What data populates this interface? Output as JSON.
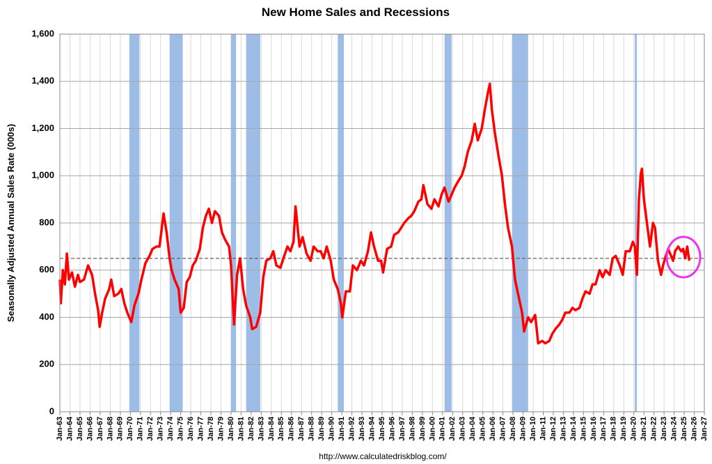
{
  "chart_data": {
    "type": "line",
    "title": "New Home Sales and Recessions",
    "y_label": "Seasonally Adjusted Annual Sales Rate (000s)",
    "source": "http://www.calculatedriskblog.com/",
    "color": "#ff0000",
    "recession_color": "#9dbde6",
    "reference_line": 650,
    "grid": true,
    "xlim": [
      1963,
      2027
    ],
    "ylim": [
      0,
      1600
    ],
    "yticks": [
      0,
      200,
      400,
      600,
      800,
      {
        "value": 1000,
        "label": "1,000"
      },
      {
        "value": 1200,
        "label": "1,200"
      },
      {
        "value": 1400,
        "label": "1,400"
      },
      {
        "value": 1600,
        "label": "1,600"
      }
    ],
    "xticks": [
      {
        "value": 1963,
        "label": "Jan-63"
      },
      {
        "value": 1964,
        "label": "Jan-64"
      },
      {
        "value": 1965,
        "label": "Jan-65"
      },
      {
        "value": 1966,
        "label": "Jan-66"
      },
      {
        "value": 1967,
        "label": "Jan-67"
      },
      {
        "value": 1968,
        "label": "Jan-68"
      },
      {
        "value": 1969,
        "label": "Jan-69"
      },
      {
        "value": 1970,
        "label": "Jan-70"
      },
      {
        "value": 1971,
        "label": "Jan-71"
      },
      {
        "value": 1972,
        "label": "Jan-72"
      },
      {
        "value": 1973,
        "label": "Jan-73"
      },
      {
        "value": 1974,
        "label": "Jan-74"
      },
      {
        "value": 1975,
        "label": "Jan-75"
      },
      {
        "value": 1976,
        "label": "Jan-76"
      },
      {
        "value": 1977,
        "label": "Jan-77"
      },
      {
        "value": 1978,
        "label": "Jan-78"
      },
      {
        "value": 1979,
        "label": "Jan-79"
      },
      {
        "value": 1980,
        "label": "Jan-80"
      },
      {
        "value": 1981,
        "label": "Jan-81"
      },
      {
        "value": 1982,
        "label": "Jan-82"
      },
      {
        "value": 1983,
        "label": "Jan-83"
      },
      {
        "value": 1984,
        "label": "Jan-84"
      },
      {
        "value": 1985,
        "label": "Jan-85"
      },
      {
        "value": 1986,
        "label": "Jan-86"
      },
      {
        "value": 1987,
        "label": "Jan-87"
      },
      {
        "value": 1988,
        "label": "Jan-88"
      },
      {
        "value": 1989,
        "label": "Jan-89"
      },
      {
        "value": 1990,
        "label": "Jan-90"
      },
      {
        "value": 1991,
        "label": "Jan-91"
      },
      {
        "value": 1992,
        "label": "Jan-92"
      },
      {
        "value": 1993,
        "label": "Jan-93"
      },
      {
        "value": 1994,
        "label": "Jan-94"
      },
      {
        "value": 1995,
        "label": "Jan-95"
      },
      {
        "value": 1996,
        "label": "Jan-96"
      },
      {
        "value": 1997,
        "label": "Jan-97"
      },
      {
        "value": 1998,
        "label": "Jan-98"
      },
      {
        "value": 1999,
        "label": "Jan-99"
      },
      {
        "value": 2000,
        "label": "Jan-00"
      },
      {
        "value": 2001,
        "label": "Jan-01"
      },
      {
        "value": 2002,
        "label": "Jan-02"
      },
      {
        "value": 2003,
        "label": "Jan-03"
      },
      {
        "value": 2004,
        "label": "Jan-04"
      },
      {
        "value": 2005,
        "label": "Jan-05"
      },
      {
        "value": 2006,
        "label": "Jan-06"
      },
      {
        "value": 2007,
        "label": "Jan-07"
      },
      {
        "value": 2008,
        "label": "Jan-08"
      },
      {
        "value": 2009,
        "label": "Jan-09"
      },
      {
        "value": 2010,
        "label": "Jan-10"
      },
      {
        "value": 2011,
        "label": "Jan-11"
      },
      {
        "value": 2012,
        "label": "Jan-12"
      },
      {
        "value": 2013,
        "label": "Jan-13"
      },
      {
        "value": 2014,
        "label": "Jan-14"
      },
      {
        "value": 2015,
        "label": "Jan-15"
      },
      {
        "value": 2016,
        "label": "Jan-16"
      },
      {
        "value": 2017,
        "label": "Jan-17"
      },
      {
        "value": 2018,
        "label": "Jan-18"
      },
      {
        "value": 2019,
        "label": "Jan-19"
      },
      {
        "value": 2020,
        "label": "Jan-20"
      },
      {
        "value": 2021,
        "label": "Jan-21"
      },
      {
        "value": 2022,
        "label": "Jan-22"
      },
      {
        "value": 2023,
        "label": "Jan-23"
      },
      {
        "value": 2024,
        "label": "Jan-24"
      },
      {
        "value": 2025,
        "label": "Jan-25"
      },
      {
        "value": 2026,
        "label": "Jan-26"
      },
      {
        "value": 2027,
        "label": "Jan-27"
      }
    ],
    "recessions": [
      [
        1969.9,
        1970.9
      ],
      [
        1973.9,
        1975.2
      ],
      [
        1980.0,
        1980.5
      ],
      [
        1981.5,
        1982.9
      ],
      [
        1990.6,
        1991.2
      ],
      [
        2001.2,
        2001.9
      ],
      [
        2007.9,
        2009.5
      ],
      [
        2020.1,
        2020.3
      ]
    ],
    "x": [
      1963.0,
      1963.1,
      1963.3,
      1963.5,
      1963.7,
      1963.9,
      1964.2,
      1964.5,
      1964.8,
      1965.0,
      1965.4,
      1965.8,
      1966.2,
      1966.5,
      1966.8,
      1966.95,
      1967.2,
      1967.5,
      1967.9,
      1968.1,
      1968.4,
      1968.8,
      1969.1,
      1969.4,
      1969.7,
      1969.9,
      1970.1,
      1970.4,
      1970.8,
      1971.1,
      1971.5,
      1971.9,
      1972.2,
      1972.6,
      1972.9,
      1973.1,
      1973.3,
      1973.6,
      1973.9,
      1974.1,
      1974.4,
      1974.8,
      1975.0,
      1975.3,
      1975.6,
      1975.9,
      1976.2,
      1976.5,
      1976.9,
      1977.2,
      1977.5,
      1977.8,
      1978.1,
      1978.4,
      1978.8,
      1979.1,
      1979.4,
      1979.8,
      1980.0,
      1980.3,
      1980.6,
      1980.9,
      1981.2,
      1981.5,
      1981.9,
      1982.1,
      1982.5,
      1982.9,
      1983.2,
      1983.5,
      1983.9,
      1984.2,
      1984.5,
      1984.9,
      1985.2,
      1985.6,
      1985.9,
      1986.2,
      1986.4,
      1986.8,
      1987.1,
      1987.5,
      1987.9,
      1988.2,
      1988.6,
      1988.9,
      1989.2,
      1989.5,
      1989.9,
      1990.2,
      1990.6,
      1990.9,
      1991.05,
      1991.4,
      1991.8,
      1992.1,
      1992.5,
      1992.9,
      1993.2,
      1993.6,
      1993.9,
      1994.2,
      1994.6,
      1994.9,
      1995.1,
      1995.5,
      1995.9,
      1996.2,
      1996.6,
      1996.9,
      1997.2,
      1997.6,
      1997.9,
      1998.2,
      1998.6,
      1998.9,
      1999.1,
      1999.5,
      1999.9,
      2000.2,
      2000.6,
      2000.9,
      2001.2,
      2001.6,
      2001.9,
      2002.2,
      2002.6,
      2002.9,
      2003.2,
      2003.5,
      2003.9,
      2004.2,
      2004.5,
      2004.9,
      2005.2,
      2005.5,
      2005.7,
      2005.9,
      2006.2,
      2006.5,
      2006.9,
      2007.2,
      2007.5,
      2007.9,
      2008.2,
      2008.5,
      2008.9,
      2009.1,
      2009.5,
      2009.8,
      2010.2,
      2010.5,
      2010.9,
      2011.2,
      2011.6,
      2011.9,
      2012.2,
      2012.6,
      2012.9,
      2013.2,
      2013.6,
      2013.9,
      2014.2,
      2014.6,
      2014.9,
      2015.2,
      2015.6,
      2015.9,
      2016.2,
      2016.6,
      2016.9,
      2017.2,
      2017.6,
      2017.9,
      2018.2,
      2018.6,
      2018.9,
      2019.2,
      2019.6,
      2019.9,
      2020.1,
      2020.3,
      2020.5,
      2020.7,
      2020.8,
      2021.0,
      2021.3,
      2021.6,
      2021.9,
      2022.1,
      2022.4,
      2022.7,
      2022.9,
      2023.1,
      2023.4,
      2023.7,
      2023.9,
      2024.1,
      2024.4,
      2024.7,
      2024.9,
      2025.1,
      2025.3,
      2025.5
    ],
    "values": [
      560,
      460,
      600,
      540,
      670,
      560,
      590,
      530,
      580,
      550,
      560,
      620,
      580,
      500,
      430,
      360,
      420,
      480,
      520,
      560,
      490,
      500,
      520,
      460,
      420,
      400,
      380,
      450,
      500,
      560,
      630,
      660,
      690,
      700,
      700,
      770,
      840,
      760,
      650,
      600,
      560,
      520,
      420,
      440,
      550,
      570,
      620,
      640,
      690,
      780,
      830,
      860,
      800,
      850,
      830,
      760,
      730,
      700,
      620,
      370,
      580,
      650,
      520,
      450,
      400,
      350,
      360,
      420,
      570,
      640,
      650,
      680,
      620,
      610,
      650,
      700,
      680,
      720,
      870,
      700,
      740,
      670,
      640,
      700,
      680,
      680,
      650,
      700,
      640,
      560,
      520,
      460,
      400,
      510,
      510,
      620,
      600,
      640,
      620,
      680,
      760,
      700,
      640,
      640,
      590,
      690,
      700,
      750,
      760,
      780,
      800,
      820,
      830,
      850,
      890,
      900,
      960,
      880,
      860,
      900,
      870,
      920,
      950,
      890,
      920,
      950,
      980,
      1000,
      1040,
      1100,
      1150,
      1220,
      1150,
      1200,
      1280,
      1350,
      1390,
      1280,
      1180,
      1100,
      1000,
      880,
      780,
      700,
      560,
      500,
      420,
      340,
      400,
      380,
      410,
      290,
      300,
      290,
      300,
      330,
      350,
      370,
      390,
      420,
      420,
      440,
      430,
      440,
      480,
      510,
      500,
      540,
      540,
      600,
      570,
      600,
      580,
      650,
      660,
      620,
      580,
      680,
      680,
      720,
      700,
      580,
      900,
      1010,
      1030,
      900,
      800,
      700,
      800,
      780,
      640,
      580,
      620,
      650,
      690,
      660,
      640,
      680,
      700,
      680,
      690,
      650,
      700,
      640
    ]
  }
}
